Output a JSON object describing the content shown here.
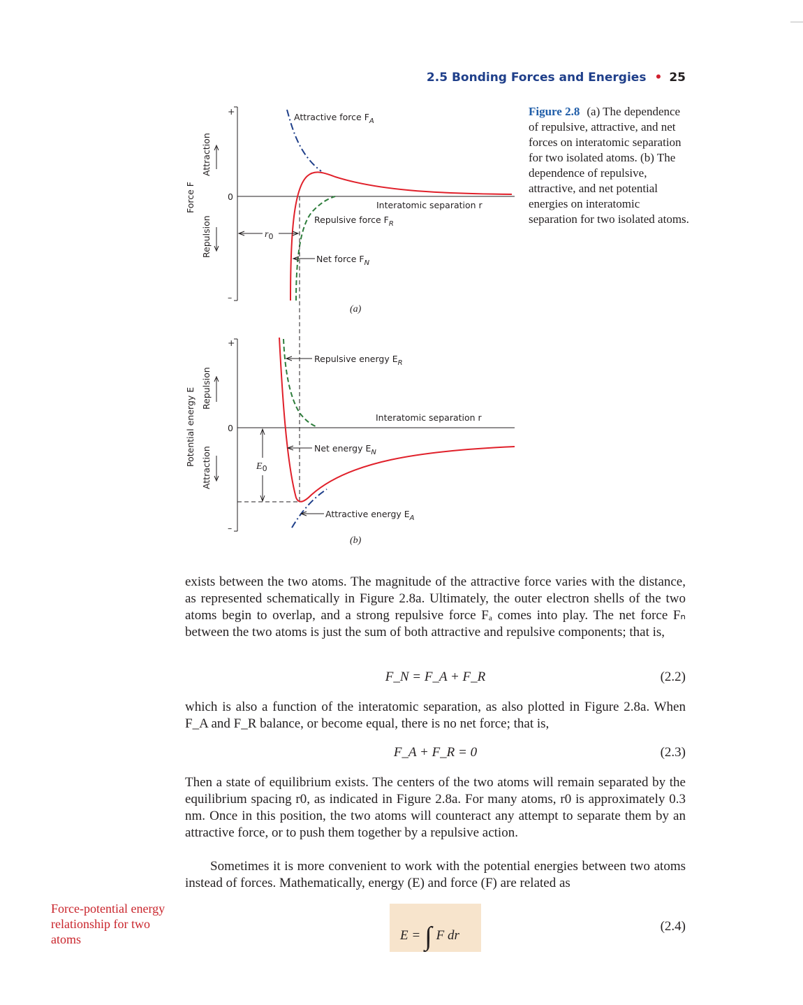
{
  "header": {
    "section": "2.5 Bonding Forces and Energies",
    "page_number": "25"
  },
  "figure": {
    "panel_a": {
      "y_axis_label": "Force F",
      "attraction_label": "Attraction",
      "repulsion_label": "Repulsion",
      "plus": "+",
      "zero": "0",
      "minus": "–",
      "attractive_force": "Attractive force F",
      "attractive_force_sub": "A",
      "repulsive_force": "Repulsive force F",
      "repulsive_force_sub": "R",
      "net_force": "Net force F",
      "net_force_sub": "N",
      "x_label": "Interatomic separation r",
      "r0": "r",
      "r0_sub": "0",
      "panel_label": "(a)"
    },
    "panel_b": {
      "y_axis_label": "Potential energy E",
      "repulsion_label": "Repulsion",
      "attraction_label": "Attraction",
      "plus": "+",
      "zero": "0",
      "minus": "–",
      "repulsive_energy": "Repulsive energy E",
      "repulsive_energy_sub": "R",
      "net_energy": "Net energy E",
      "net_energy_sub": "N",
      "attractive_energy": "Attractive energy E",
      "attractive_energy_sub": "A",
      "x_label": "Interatomic separation r",
      "e0": "E",
      "e0_sub": "0",
      "panel_label": "(b)"
    },
    "caption_label": "Figure 2.8",
    "caption_text": "(a) The dependence of repulsive, attractive, and net forces on interatomic separation for two isolated atoms. (b) The dependence of repulsive, attractive, and net potential energies on interatomic separation for two isolated atoms."
  },
  "text": {
    "p1": "exists between the two atoms. The magnitude of the attractive force varies with the distance, as represented schematically in Figure 2.8a. Ultimately, the outer electron shells of the two atoms begin to overlap, and a strong repulsive force Fₐ comes into play. The net force Fₙ between the two atoms is just the sum of both attractive and repulsive components; that is,",
    "eq2_expr": "F_N = F_A + F_R",
    "eq2_num": "(2.2)",
    "p2": "which is also a function of the interatomic separation, as also plotted in Figure 2.8a. When F_A and F_R balance, or become equal, there is no net force; that is,",
    "eq3_expr": "F_A + F_R = 0",
    "eq3_num": "(2.3)",
    "p3": "Then a state of equilibrium exists. The centers of the two atoms will remain separated by the equilibrium spacing r0, as indicated in Figure 2.8a. For many atoms, r0 is approximately 0.3 nm. Once in this position, the two atoms will counteract any attempt to separate them by an attractive force, or to push them together by a repulsive action.",
    "p4": "Sometimes it is more convenient to work with the potential energies between two atoms instead of forces. Mathematically, energy (E) and force (F) are related as",
    "eq4_lhs": "E =",
    "eq4_rhs": "F dr",
    "eq4_num": "(2.4)",
    "margin_note": "Force-potential energy relationship for two atoms"
  },
  "colors": {
    "net_curve": "#e0202a",
    "attractive_curve": "#1f3f8a",
    "repulsive_curve": "#2e7d3c",
    "heading_blue": "#1f3f8a",
    "margin_red": "#c9252c",
    "equation_highlight": "#f7e4cc"
  }
}
